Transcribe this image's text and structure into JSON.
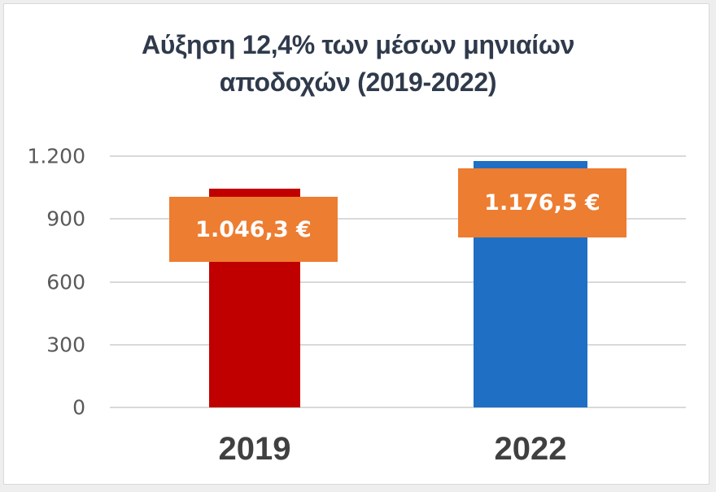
{
  "chart_data": {
    "type": "bar",
    "title": "Αύξηση 12,4% των μέσων μηνιαίων αποδοχών (2019-2022)",
    "title_lines": [
      "Αύξηση 12,4% των μέσων μηνιαίων",
      "αποδοχών (2019-2022)"
    ],
    "categories": [
      "2019",
      "2022"
    ],
    "values": [
      1046.3,
      1176.5
    ],
    "data_labels": [
      "1.046,3 €",
      "1.176,5 €"
    ],
    "bar_colors": [
      "#c00000",
      "#1f6fc5"
    ],
    "label_box_color": "#ed7d31",
    "xlabel": "",
    "ylabel": "",
    "ylim": [
      0,
      1200
    ],
    "yticks": [
      0,
      300,
      600,
      900,
      1200
    ],
    "ytick_labels": [
      "0",
      "300",
      "600",
      "900",
      "1.200"
    ],
    "grid": true,
    "legend": null
  }
}
